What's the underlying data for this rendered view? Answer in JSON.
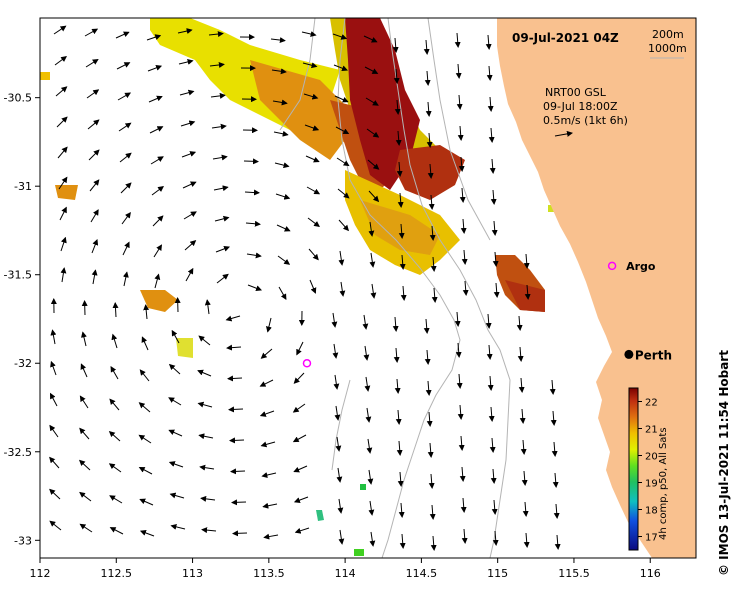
{
  "map": {
    "title": "09-Jul-2021 04Z",
    "depth_contours": [
      "200m",
      "1000m"
    ],
    "current_label": {
      "line1": "NRT00 GSL",
      "line2": "09-Jul 18:00Z",
      "line3": "0.5m/s (1kt 6h)"
    },
    "lon_ticks": [
      "112",
      "112.5",
      "113",
      "113.5",
      "114",
      "114.5",
      "115",
      "115.5",
      "116"
    ],
    "lat_ticks": [
      "-30.5",
      "-31",
      "-31.5",
      "-32",
      "-32.5",
      "-33"
    ],
    "lon_range": [
      112,
      116.3
    ],
    "lat_range": [
      -33.1,
      -30.05
    ],
    "markers": [
      {
        "label": "Argo",
        "lon": 115.75,
        "lat": -31.45,
        "color": "#ff00ff"
      },
      {
        "label": "",
        "lon": 113.75,
        "lat": -32.0,
        "color": "#ff00ff"
      },
      {
        "label": "Perth",
        "lon": 115.86,
        "lat": -31.95,
        "color": "#000000"
      }
    ],
    "colors": {
      "land": "#f9c18f",
      "ocean": "#ffffff",
      "contour": "#b4b4b4"
    },
    "colorbar": {
      "ticks": [
        "22",
        "21",
        "20",
        "19",
        "18",
        "17"
      ],
      "min": 16.5,
      "max": 22.5,
      "label": "4h comp, p50, All Sats"
    },
    "credit": "© IMOS 13-Jul-2021 11:54 Hobart"
  }
}
